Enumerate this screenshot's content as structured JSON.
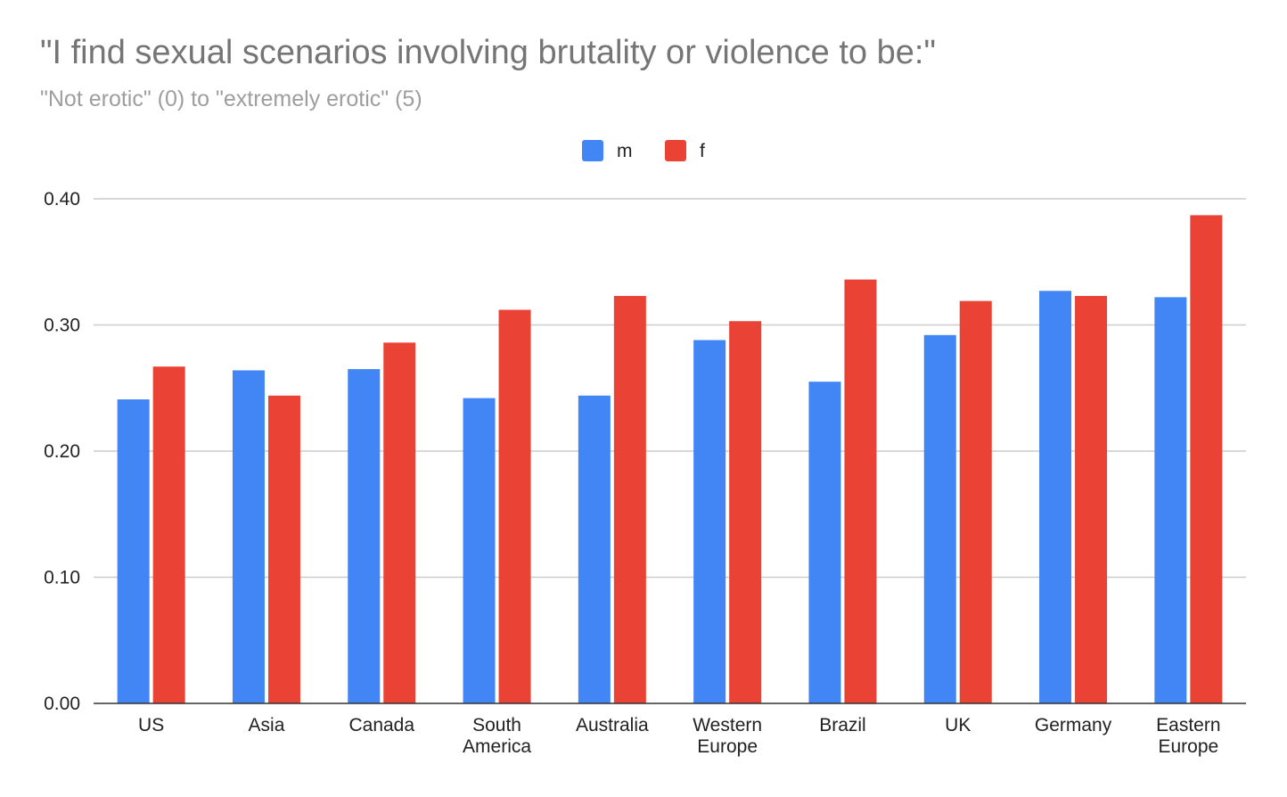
{
  "chart_data": {
    "type": "bar",
    "title": "\"I find sexual scenarios involving brutality or violence to be:\"",
    "subtitle": "\"Not erotic\" (0) to \"extremely erotic\" (5)",
    "categories": [
      [
        "US"
      ],
      [
        "Asia"
      ],
      [
        "Canada"
      ],
      [
        "South",
        "America"
      ],
      [
        "Australia"
      ],
      [
        "Western",
        "Europe"
      ],
      [
        "Brazil"
      ],
      [
        "UK"
      ],
      [
        "Germany"
      ],
      [
        "Eastern",
        "Europe"
      ]
    ],
    "series": [
      {
        "name": "m",
        "color": "#4285f4",
        "values": [
          0.241,
          0.264,
          0.265,
          0.242,
          0.244,
          0.288,
          0.255,
          0.292,
          0.327,
          0.322
        ]
      },
      {
        "name": "f",
        "color": "#ea4335",
        "values": [
          0.267,
          0.244,
          0.286,
          0.312,
          0.323,
          0.303,
          0.336,
          0.319,
          0.323,
          0.387
        ]
      }
    ],
    "y_ticks": [
      "0.00",
      "0.10",
      "0.20",
      "0.30",
      "0.40"
    ],
    "ylim": [
      0,
      0.4
    ],
    "grid": true,
    "legend_position": "top-center"
  }
}
